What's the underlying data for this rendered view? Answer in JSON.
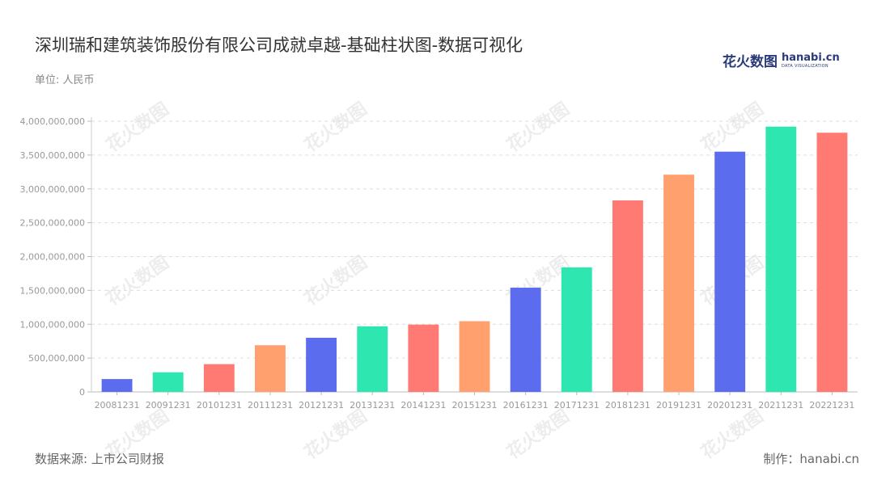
{
  "header": {
    "title": "深圳瑞和建筑装饰股份有限公司成就卓越-基础柱状图-数据可视化",
    "unit": "单位: 人民币"
  },
  "logo": {
    "cn_text": "花火数图",
    "en_text": "hanabi.cn",
    "en_sub": "DATA VISUALIZATION"
  },
  "watermark_text": "花火数图",
  "footer": {
    "source": "数据来源: 上市公司财报",
    "credit": "制作：hanabi.cn"
  },
  "colors": {
    "palette": [
      "#5b6cef",
      "#2ee6b0",
      "#ff7a72",
      "#ffa06e"
    ],
    "axis_text": "#999999",
    "grid": "#dddddd"
  },
  "chart_data": {
    "type": "bar",
    "categories": [
      "20081231",
      "20091231",
      "20101231",
      "20111231",
      "20121231",
      "20131231",
      "20141231",
      "20151231",
      "20161231",
      "20171231",
      "20181231",
      "20191231",
      "20201231",
      "20211231",
      "20221231"
    ],
    "values": [
      190000000,
      290000000,
      410000000,
      690000000,
      800000000,
      970000000,
      995000000,
      1045000000,
      1540000000,
      1840000000,
      2830000000,
      3210000000,
      3550000000,
      3920000000,
      3830000000
    ],
    "colors": [
      "#5b6cef",
      "#2ee6b0",
      "#ff7a72",
      "#ffa06e",
      "#5b6cef",
      "#2ee6b0",
      "#ff7a72",
      "#ffa06e",
      "#5b6cef",
      "#2ee6b0",
      "#ff7a72",
      "#ffa06e",
      "#5b6cef",
      "#2ee6b0",
      "#ff7a72"
    ],
    "yticks": [
      "0",
      "500,000,000",
      "1,000,000,000",
      "1,500,000,000",
      "2,000,000,000",
      "2,500,000,000",
      "3,000,000,000",
      "3,500,000,000",
      "4,000,000,000"
    ],
    "ylim": [
      0,
      4000000000
    ],
    "grid": true,
    "title": "深圳瑞和建筑装饰股份有限公司成就卓越-基础柱状图-数据可视化",
    "xlabel": "",
    "ylabel": ""
  }
}
